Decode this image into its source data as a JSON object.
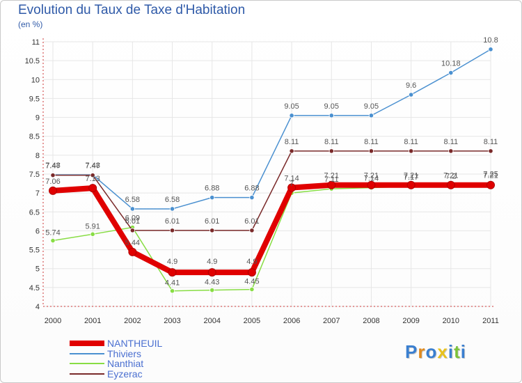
{
  "chart_data": {
    "type": "line",
    "title": "Evolution du Taux de Taxe d'Habitation",
    "ylabel": "(en %)",
    "xlabel": "",
    "categories": [
      "2000",
      "2001",
      "2002",
      "2003",
      "2004",
      "2005",
      "2006",
      "2007",
      "2008",
      "2009",
      "2010",
      "2011"
    ],
    "ylim": [
      4,
      11
    ],
    "yticks": [
      "4",
      "4.5",
      "5",
      "5.5",
      "6",
      "6.5",
      "7",
      "7.5",
      "8",
      "8.5",
      "9",
      "9.5",
      "10",
      "10.5",
      "11"
    ],
    "grid": true,
    "series": [
      {
        "name": "NANTHEUIL",
        "color": "#e00000",
        "values": [
          7.06,
          7.13,
          5.44,
          4.9,
          4.9,
          4.9,
          7.14,
          7.21,
          7.21,
          7.21,
          7.21,
          7.21
        ],
        "labels": [
          "7.06",
          "7.13",
          "5.44",
          "4.9",
          "4.9",
          "4.9",
          "7.14",
          "7.21",
          "7.21",
          "7.21",
          "7.21",
          "7.21"
        ]
      },
      {
        "name": "Thiviers",
        "color": "#4a90d0",
        "values": [
          7.48,
          7.48,
          6.58,
          6.58,
          6.88,
          6.88,
          9.05,
          9.05,
          9.05,
          9.6,
          10.18,
          10.8
        ],
        "labels": [
          "7.48",
          "7.48",
          "6.58",
          "6.58",
          "6.88",
          "6.88",
          "9.05",
          "9.05",
          "9.05",
          "9.6",
          "10.18",
          "10.8"
        ]
      },
      {
        "name": "Nanthiat",
        "color": "#88dd44",
        "values": [
          5.74,
          5.91,
          6.09,
          4.41,
          4.43,
          4.45,
          7.0,
          7.11,
          7.14,
          7.17,
          7.2,
          7.25
        ],
        "labels": [
          "5.74",
          "5.91",
          "6.09",
          "4.41",
          "4.43",
          "4.45",
          "7",
          "7.11",
          "7.14",
          "7.17",
          "7.2",
          "7.25"
        ]
      },
      {
        "name": "Eyzerac",
        "color": "#7a2a2a",
        "values": [
          7.47,
          7.47,
          6.01,
          6.01,
          6.01,
          6.01,
          8.11,
          8.11,
          8.11,
          8.11,
          8.11,
          8.11
        ],
        "labels": [
          "7.47",
          "7.47",
          "6.01",
          "6.01",
          "6.01",
          "6.01",
          "8.11",
          "8.11",
          "8.11",
          "8.11",
          "8.11",
          "8.11"
        ]
      }
    ]
  },
  "logo": {
    "letters": [
      "P",
      "r",
      "o",
      "x",
      "i",
      "t",
      "i"
    ],
    "colors": [
      "#3a7fd0",
      "#e08a1e",
      "#3a7fd0",
      "#e8c21e",
      "#3a7fd0",
      "#7cc23a",
      "#3a7fd0"
    ]
  }
}
